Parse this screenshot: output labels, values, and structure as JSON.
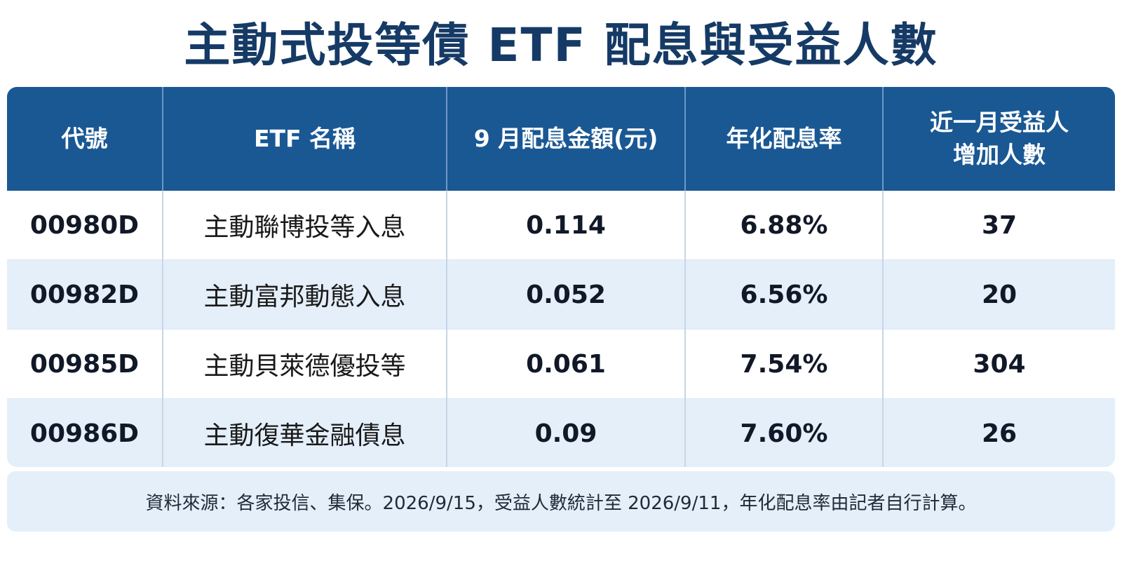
{
  "title": "主動式投等債 ETF 配息與受益人數",
  "table": {
    "headers": {
      "code": "代號",
      "name": "ETF 名稱",
      "dividend": "9 月配息金額(元)",
      "yield": "年化配息率",
      "holders_line1": "近一月受益人",
      "holders_line2": "增加人數"
    },
    "rows": [
      {
        "code": "00980D",
        "name": "主動聯博投等入息",
        "dividend": "0.114",
        "yield": "6.88%",
        "holders": "37"
      },
      {
        "code": "00982D",
        "name": "主動富邦動態入息",
        "dividend": "0.052",
        "yield": "6.56%",
        "holders": "20"
      },
      {
        "code": "00985D",
        "name": "主動貝萊德優投等",
        "dividend": "0.061",
        "yield": "7.54%",
        "holders": "304"
      },
      {
        "code": "00986D",
        "name": "主動復華金融債息",
        "dividend": "0.09",
        "yield": "7.60%",
        "holders": "26"
      }
    ]
  },
  "footer": "資料來源：各家投信、集保。2026/9/15，受益人數統計至 2026/9/11，年化配息率由記者自行計算。",
  "colors": {
    "title": "#163a66",
    "header_bg": "#1a5894",
    "row_alt_bg": "#e4effa"
  }
}
